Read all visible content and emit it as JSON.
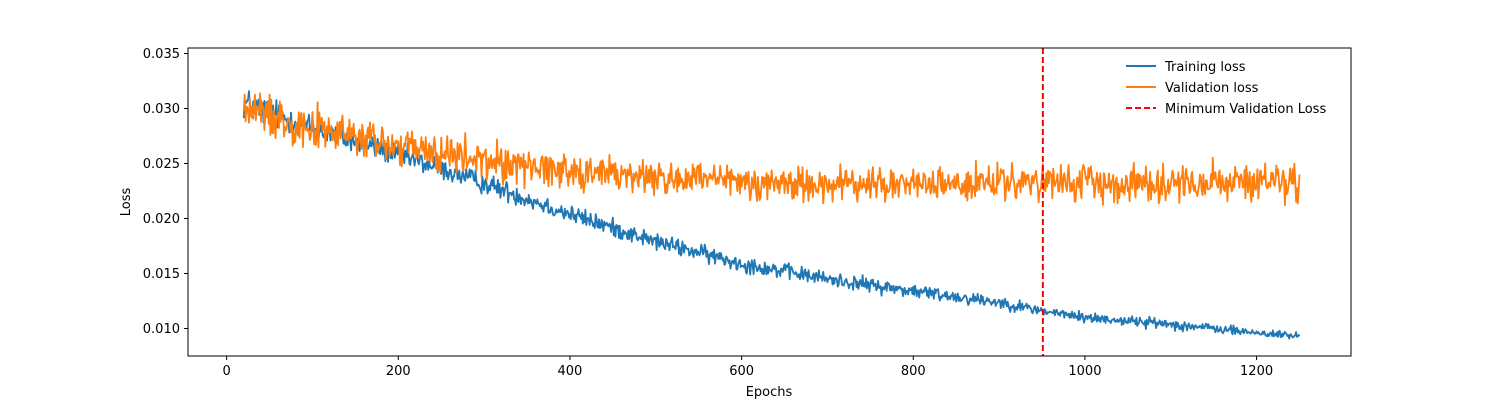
{
  "chart_data": {
    "type": "line",
    "title": "",
    "xlabel": "Epochs",
    "ylabel": "Loss",
    "xlim": [
      -45,
      1310
    ],
    "ylim": [
      0.0075,
      0.0355
    ],
    "xticks": [
      0,
      200,
      400,
      600,
      800,
      1000,
      1200
    ],
    "yticks": [
      0.01,
      0.015,
      0.02,
      0.025,
      0.03,
      0.035
    ],
    "ytick_labels": [
      "0.010",
      "0.015",
      "0.020",
      "0.025",
      "0.030",
      "0.035"
    ],
    "grid": false,
    "legend_position": "top-right",
    "x_range": [
      20,
      1250
    ],
    "series": [
      {
        "name": "Training loss",
        "color": "#1f77b4",
        "style": "solid",
        "trend_x": [
          20,
          100,
          200,
          300,
          400,
          500,
          600,
          700,
          800,
          900,
          950,
          1000,
          1100,
          1200,
          1250
        ],
        "trend_y": [
          0.0305,
          0.0282,
          0.0258,
          0.0232,
          0.0204,
          0.0179,
          0.0159,
          0.0145,
          0.0134,
          0.0124,
          0.0116,
          0.011,
          0.0104,
          0.0096,
          0.0093
        ],
        "noise_amplitude": [
          0.0016,
          0.0013,
          0.0011,
          0.001,
          0.0009,
          0.0008,
          0.0008,
          0.0007,
          0.0007,
          0.0006,
          0.0005,
          0.0005,
          0.0005,
          0.0004,
          0.0004
        ]
      },
      {
        "name": "Validation loss",
        "color": "#ff7f0e",
        "style": "solid",
        "trend_x": [
          20,
          100,
          200,
          300,
          400,
          500,
          600,
          700,
          800,
          900,
          950,
          1000,
          1100,
          1200,
          1250
        ],
        "trend_y": [
          0.03,
          0.0283,
          0.0265,
          0.0252,
          0.0244,
          0.0237,
          0.0233,
          0.0231,
          0.0231,
          0.0232,
          0.0232,
          0.0232,
          0.0233,
          0.0232,
          0.0233
        ],
        "noise_amplitude": [
          0.002,
          0.002,
          0.002,
          0.0019,
          0.0018,
          0.0017,
          0.0017,
          0.0017,
          0.0017,
          0.0016,
          0.0016,
          0.0017,
          0.0017,
          0.0017,
          0.0018
        ]
      }
    ],
    "annotations": [
      {
        "name": "Minimum Validation Loss",
        "type": "vline",
        "x": 951,
        "color": "#ff0000",
        "style": "dashed"
      }
    ]
  }
}
